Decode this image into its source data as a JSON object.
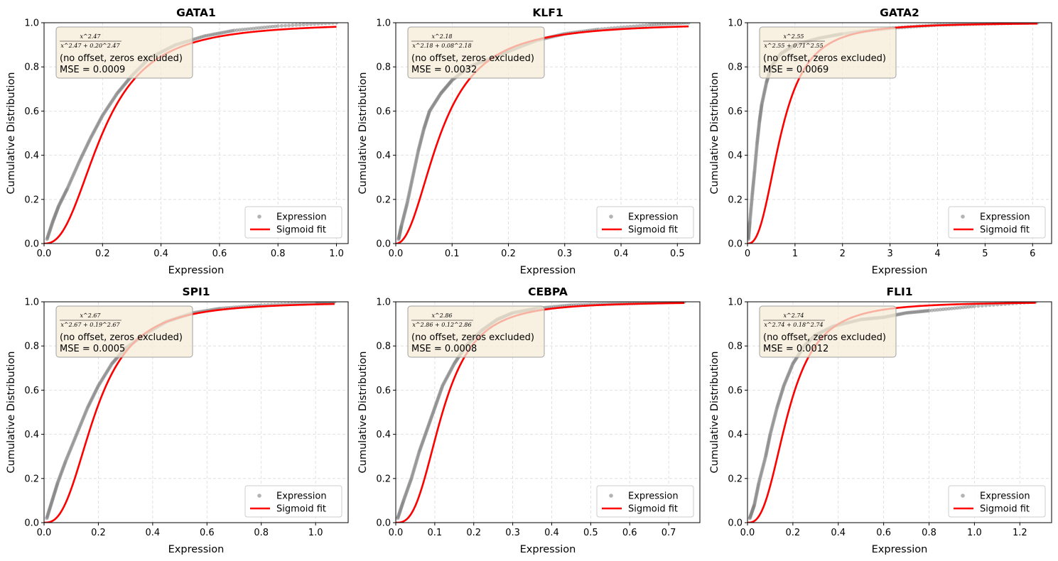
{
  "figure": {
    "legend_location": "lower right",
    "colors": {
      "expression_points": "#808080",
      "sigmoid_fit": "#ff0000",
      "annotation_box_fill": "#f5ecd7",
      "annotation_box_edge": "#a0a0a0",
      "grid": "#d9d9d9"
    }
  },
  "chart_data": [
    {
      "type": "scatter",
      "title": "GATA1",
      "xlabel": "Expression",
      "ylabel": "Cumulative Distribution",
      "xlim": [
        0,
        1.04
      ],
      "ylim": [
        0,
        1.0
      ],
      "xticks": [
        "0.0",
        "0.2",
        "0.4",
        "0.6",
        "0.8",
        "1.0"
      ],
      "xtick_values": [
        0,
        0.2,
        0.4,
        0.6,
        0.8,
        1.0
      ],
      "yticks": [
        "0.0",
        "0.2",
        "0.4",
        "0.6",
        "0.8",
        "1.0"
      ],
      "ytick_values": [
        0,
        0.2,
        0.4,
        0.6,
        0.8,
        1.0
      ],
      "grid": true,
      "series": [
        {
          "name": "Expression",
          "style": "scatter",
          "x": [
            0.01,
            0.03,
            0.05,
            0.08,
            0.12,
            0.16,
            0.2,
            0.25,
            0.3,
            0.36,
            0.45,
            0.55,
            0.65,
            0.8,
            1.0
          ],
          "y": [
            0.02,
            0.1,
            0.17,
            0.25,
            0.37,
            0.48,
            0.58,
            0.68,
            0.76,
            0.84,
            0.9,
            0.94,
            0.965,
            0.985,
            1.0
          ]
        },
        {
          "name": "Sigmoid fit",
          "style": "line",
          "k": 0.2,
          "n": 2.47,
          "x_max": 1.0
        }
      ],
      "annotation": {
        "formula_num": "x^2.47",
        "formula_den": "x^2.47 + 0.20^2.47",
        "note": "(no offset, zeros excluded)",
        "mse": "MSE = 0.0009"
      }
    },
    {
      "type": "scatter",
      "title": "KLF1",
      "xlabel": "Expression",
      "ylabel": "Cumulative Distribution",
      "xlim": [
        0,
        0.54
      ],
      "ylim": [
        0,
        1.0
      ],
      "xticks": [
        "0.0",
        "0.1",
        "0.2",
        "0.3",
        "0.4",
        "0.5"
      ],
      "xtick_values": [
        0,
        0.1,
        0.2,
        0.3,
        0.4,
        0.5
      ],
      "yticks": [
        "0.0",
        "0.2",
        "0.4",
        "0.6",
        "0.8",
        "1.0"
      ],
      "ytick_values": [
        0,
        0.2,
        0.4,
        0.6,
        0.8,
        1.0
      ],
      "grid": true,
      "series": [
        {
          "name": "Expression",
          "style": "scatter",
          "x": [
            0.005,
            0.01,
            0.02,
            0.03,
            0.04,
            0.05,
            0.06,
            0.08,
            0.1,
            0.13,
            0.17,
            0.2,
            0.25,
            0.3,
            0.36,
            0.45,
            0.52
          ],
          "y": [
            0.02,
            0.08,
            0.18,
            0.3,
            0.42,
            0.52,
            0.6,
            0.68,
            0.74,
            0.8,
            0.84,
            0.87,
            0.92,
            0.95,
            0.97,
            0.99,
            1.0
          ]
        },
        {
          "name": "Sigmoid fit",
          "style": "line",
          "k": 0.08,
          "n": 2.18,
          "x_max": 0.52
        }
      ],
      "annotation": {
        "formula_num": "x^2.18",
        "formula_den": "x^2.18 + 0.08^2.18",
        "note": "(no offset, zeros excluded)",
        "mse": "MSE = 0.0032"
      }
    },
    {
      "type": "scatter",
      "title": "GATA2",
      "xlabel": "Expression",
      "ylabel": "Cumulative Distribution",
      "xlim": [
        0,
        6.4
      ],
      "ylim": [
        0,
        1.0
      ],
      "xticks": [
        "0",
        "1",
        "2",
        "3",
        "4",
        "5",
        "6"
      ],
      "xtick_values": [
        0,
        1,
        2,
        3,
        4,
        5,
        6
      ],
      "yticks": [
        "0.0",
        "0.2",
        "0.4",
        "0.6",
        "0.8",
        "1.0"
      ],
      "ytick_values": [
        0,
        0.2,
        0.4,
        0.6,
        0.8,
        1.0
      ],
      "grid": true,
      "series": [
        {
          "name": "Expression",
          "style": "scatter",
          "x": [
            0.02,
            0.05,
            0.1,
            0.15,
            0.2,
            0.25,
            0.3,
            0.4,
            0.5,
            0.7,
            1.0,
            1.5,
            2.0,
            3.0,
            4.0,
            5.0,
            6.1
          ],
          "y": [
            0.02,
            0.1,
            0.22,
            0.33,
            0.45,
            0.55,
            0.63,
            0.73,
            0.8,
            0.86,
            0.9,
            0.93,
            0.95,
            0.975,
            0.99,
            0.995,
            1.0
          ]
        },
        {
          "name": "Sigmoid fit",
          "style": "line",
          "k": 0.71,
          "n": 2.55,
          "x_max": 6.1
        }
      ],
      "annotation": {
        "formula_num": "x^2.55",
        "formula_den": "x^2.55 + 0.71^2.55",
        "note": "(no offset, zeros excluded)",
        "mse": "MSE = 0.0069"
      }
    },
    {
      "type": "scatter",
      "title": "SPI1",
      "xlabel": "Expression",
      "ylabel": "Cumulative Distribution",
      "xlim": [
        0,
        1.12
      ],
      "ylim": [
        0,
        1.0
      ],
      "xticks": [
        "0.0",
        "0.2",
        "0.4",
        "0.6",
        "0.8",
        "1.0"
      ],
      "xtick_values": [
        0,
        0.2,
        0.4,
        0.6,
        0.8,
        1.0
      ],
      "yticks": [
        "0.0",
        "0.2",
        "0.4",
        "0.6",
        "0.8",
        "1.0"
      ],
      "ytick_values": [
        0,
        0.2,
        0.4,
        0.6,
        0.8,
        1.0
      ],
      "grid": true,
      "series": [
        {
          "name": "Expression",
          "style": "scatter",
          "x": [
            0.01,
            0.03,
            0.05,
            0.08,
            0.12,
            0.16,
            0.2,
            0.25,
            0.3,
            0.38,
            0.45,
            0.55,
            0.65,
            0.8,
            1.0,
            1.07
          ],
          "y": [
            0.02,
            0.1,
            0.18,
            0.28,
            0.4,
            0.52,
            0.62,
            0.72,
            0.79,
            0.86,
            0.91,
            0.95,
            0.97,
            0.985,
            0.995,
            1.0
          ]
        },
        {
          "name": "Sigmoid fit",
          "style": "line",
          "k": 0.19,
          "n": 2.67,
          "x_max": 1.07
        }
      ],
      "annotation": {
        "formula_num": "x^2.67",
        "formula_den": "x^2.67 + 0.19^2.67",
        "note": "(no offset, zeros excluded)",
        "mse": "MSE = 0.0005"
      }
    },
    {
      "type": "scatter",
      "title": "CEBPA",
      "xlabel": "Expression",
      "ylabel": "Cumulative Distribution",
      "xlim": [
        0,
        0.78
      ],
      "ylim": [
        0,
        1.0
      ],
      "xticks": [
        "0.0",
        "0.1",
        "0.2",
        "0.3",
        "0.4",
        "0.5",
        "0.6",
        "0.7"
      ],
      "xtick_values": [
        0,
        0.1,
        0.2,
        0.3,
        0.4,
        0.5,
        0.6,
        0.7
      ],
      "yticks": [
        "0.0",
        "0.2",
        "0.4",
        "0.6",
        "0.8",
        "1.0"
      ],
      "ytick_values": [
        0,
        0.2,
        0.4,
        0.6,
        0.8,
        1.0
      ],
      "grid": true,
      "series": [
        {
          "name": "Expression",
          "style": "scatter",
          "x": [
            0.005,
            0.02,
            0.04,
            0.06,
            0.08,
            0.1,
            0.12,
            0.15,
            0.18,
            0.22,
            0.26,
            0.3,
            0.36,
            0.45,
            0.55,
            0.65,
            0.74
          ],
          "y": [
            0.02,
            0.1,
            0.2,
            0.32,
            0.42,
            0.52,
            0.62,
            0.72,
            0.8,
            0.87,
            0.92,
            0.95,
            0.97,
            0.985,
            0.99,
            0.995,
            1.0
          ]
        },
        {
          "name": "Sigmoid fit",
          "style": "line",
          "k": 0.12,
          "n": 2.86,
          "x_max": 0.74
        }
      ],
      "annotation": {
        "formula_num": "x^2.86",
        "formula_den": "x^2.86 + 0.12^2.86",
        "note": "(no offset, zeros excluded)",
        "mse": "MSE = 0.0008"
      }
    },
    {
      "type": "scatter",
      "title": "FLI1",
      "xlabel": "Expression",
      "ylabel": "Cumulative Distribution",
      "xlim": [
        0,
        1.34
      ],
      "ylim": [
        0,
        1.0
      ],
      "xticks": [
        "0.0",
        "0.2",
        "0.4",
        "0.6",
        "0.8",
        "1.0",
        "1.2"
      ],
      "xtick_values": [
        0,
        0.2,
        0.4,
        0.6,
        0.8,
        1.0,
        1.2
      ],
      "yticks": [
        "0.0",
        "0.2",
        "0.4",
        "0.6",
        "0.8",
        "1.0"
      ],
      "ytick_values": [
        0,
        0.2,
        0.4,
        0.6,
        0.8,
        1.0
      ],
      "grid": true,
      "series": [
        {
          "name": "Expression",
          "style": "scatter",
          "x": [
            0.01,
            0.03,
            0.05,
            0.08,
            0.1,
            0.13,
            0.16,
            0.2,
            0.25,
            0.3,
            0.38,
            0.5,
            0.6,
            0.7,
            0.8,
            1.0,
            1.27
          ],
          "y": [
            0.02,
            0.08,
            0.18,
            0.3,
            0.4,
            0.52,
            0.62,
            0.72,
            0.8,
            0.85,
            0.89,
            0.92,
            0.93,
            0.95,
            0.96,
            0.98,
            1.0
          ]
        },
        {
          "name": "Sigmoid fit",
          "style": "line",
          "k": 0.18,
          "n": 2.74,
          "x_max": 1.27
        }
      ],
      "annotation": {
        "formula_num": "x^2.74",
        "formula_den": "x^2.74 + 0.18^2.74",
        "note": "(no offset, zeros excluded)",
        "mse": "MSE = 0.0012"
      }
    }
  ]
}
